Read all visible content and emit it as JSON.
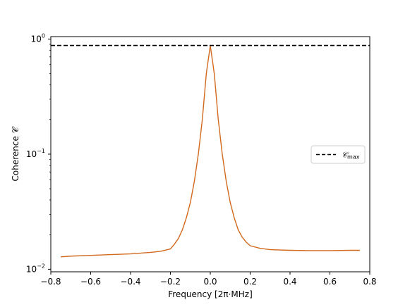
{
  "chart_data": {
    "type": "line",
    "title": "",
    "xlabel": "Frequency [2π·MHz]",
    "ylabel": "Coherence 𝒞",
    "xlim": [
      -0.8,
      0.8
    ],
    "ylim": [
      0.0095,
      1.05
    ],
    "yscale": "log",
    "grid": false,
    "legend_position": "right",
    "x_ticks": [
      {
        "value": -0.8,
        "label": "−0.8"
      },
      {
        "value": -0.6,
        "label": "−0.6"
      },
      {
        "value": -0.4,
        "label": "−0.4"
      },
      {
        "value": -0.2,
        "label": "−0.2"
      },
      {
        "value": 0.0,
        "label": "0.0"
      },
      {
        "value": 0.2,
        "label": "0.2"
      },
      {
        "value": 0.4,
        "label": "0.4"
      },
      {
        "value": 0.6,
        "label": "0.6"
      },
      {
        "value": 0.8,
        "label": "0.8"
      }
    ],
    "y_ticks": [
      {
        "value": 0.01,
        "base": "10",
        "exp": "−2"
      },
      {
        "value": 0.1,
        "base": "10",
        "exp": "−1"
      },
      {
        "value": 1,
        "base": "10",
        "exp": "0"
      }
    ],
    "series": [
      {
        "color": "#d2691e",
        "x": [
          -0.75,
          -0.7,
          -0.6,
          -0.5,
          -0.4,
          -0.3,
          -0.25,
          -0.2,
          -0.18,
          -0.16,
          -0.14,
          -0.12,
          -0.1,
          -0.08,
          -0.06,
          -0.04,
          -0.02,
          0.0,
          0.02,
          0.04,
          0.06,
          0.08,
          0.1,
          0.12,
          0.14,
          0.16,
          0.18,
          0.2,
          0.25,
          0.3,
          0.4,
          0.5,
          0.6,
          0.7,
          0.75
        ],
        "y": [
          0.0128,
          0.013,
          0.0132,
          0.0134,
          0.0136,
          0.014,
          0.0143,
          0.015,
          0.0165,
          0.0185,
          0.022,
          0.028,
          0.038,
          0.058,
          0.1,
          0.2,
          0.5,
          0.88,
          0.5,
          0.2,
          0.1,
          0.058,
          0.038,
          0.028,
          0.022,
          0.019,
          0.0172,
          0.016,
          0.0152,
          0.0148,
          0.0146,
          0.0145,
          0.0145,
          0.0146,
          0.0146
        ]
      },
      {
        "name": "𝒞",
        "name_sub": "max",
        "style": "dashed",
        "color": "#000000",
        "x": [
          -0.8,
          0.8
        ],
        "y": [
          0.88,
          0.88
        ]
      }
    ]
  }
}
